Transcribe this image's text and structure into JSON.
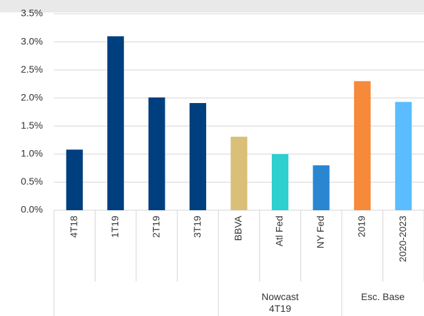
{
  "chart_data": {
    "type": "bar",
    "categories": [
      "4T18",
      "1T19",
      "2T19",
      "3T19",
      "BBVA",
      "Atl Fed",
      "NY Fed",
      "2019",
      "2020-2023"
    ],
    "groups": [
      null,
      null,
      null,
      null,
      "Nowcast 4T19",
      "Nowcast 4T19",
      "Nowcast 4T19",
      "Esc. Base",
      "Esc. Base"
    ],
    "values": [
      1.08,
      3.1,
      2.01,
      1.91,
      1.31,
      1.0,
      0.8,
      2.3,
      1.93
    ],
    "colors": [
      "#003f7f",
      "#003f7f",
      "#003f7f",
      "#003f7f",
      "#d9bf77",
      "#2dcfcf",
      "#2a86d1",
      "#f7893b",
      "#5bbcff"
    ],
    "ylim": [
      0,
      3.5
    ],
    "yticks": [
      {
        "value": 0,
        "label": "0.0%"
      },
      {
        "value": 0.5,
        "label": "0.5%"
      },
      {
        "value": 1,
        "label": "1.0%"
      },
      {
        "value": 1.5,
        "label": "1.5%"
      },
      {
        "value": 2,
        "label": "2.0%"
      },
      {
        "value": 2.5,
        "label": "2.5%"
      },
      {
        "value": 3,
        "label": "3.0%"
      },
      {
        "value": 3.5,
        "label": "3.5%"
      }
    ],
    "grid": true
  }
}
